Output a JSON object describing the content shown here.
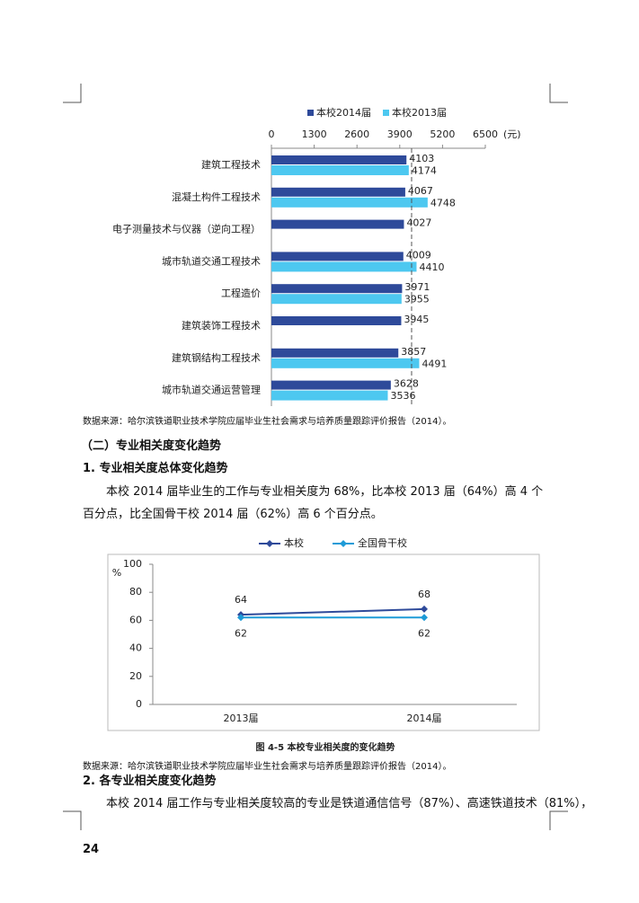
{
  "chart_data": [
    {
      "type": "bar",
      "orientation": "horizontal",
      "categories": [
        "建筑工程技术",
        "混凝土构件工程技术",
        "电子测量技术与仪器（逆向工程）",
        "城市轨道交通工程技术",
        "工程造价",
        "建筑装饰工程技术",
        "建筑钢结构工程技术",
        "城市轨道交通运营管理"
      ],
      "series": [
        {
          "name": "本校2014届",
          "color": "#2e4a9a",
          "values": [
            4103,
            4067,
            4027,
            4009,
            3971,
            3945,
            3857,
            3628
          ]
        },
        {
          "name": "本校2013届",
          "color": "#4dc8f0",
          "values": [
            4174,
            4748,
            null,
            4410,
            3955,
            null,
            4491,
            3536
          ]
        }
      ],
      "xlim": [
        0,
        6500
      ],
      "xticks": [
        0,
        1300,
        2600,
        3900,
        5200,
        6500
      ],
      "xlabel": "(元)",
      "reference_line": 4260,
      "legend": "top"
    },
    {
      "type": "line",
      "categories": [
        "2013届",
        "2014届"
      ],
      "series": [
        {
          "name": "本校",
          "color": "#2e4a9a",
          "values": [
            64,
            68
          ]
        },
        {
          "name": "全国骨干校",
          "color": "#1e9bd7",
          "values": [
            62,
            62
          ]
        }
      ],
      "ylim": [
        0,
        100
      ],
      "yticks": [
        0,
        20,
        40,
        60,
        80,
        100
      ],
      "ylabel": "%",
      "legend": "top",
      "title": "图 4-5  本校专业相关度的变化趋势"
    }
  ],
  "document": {
    "source_1": "数据来源：哈尔滨铁道职业技术学院应届毕业生社会需求与培养质量跟踪评价报告（2014）。",
    "heading_2": "（二）专业相关度变化趋势",
    "heading_3a": "1.   专业相关度总体变化趋势",
    "paragraph_1": "本校 2014 届毕业生的工作与专业相关度为 68%，比本校 2013 届（64%）高 4 个百分点，比全国骨干校 2014 届（62%）高 6 个百分点。",
    "source_2": "数据来源：哈尔滨铁道职业技术学院应届毕业生社会需求与培养质量跟踪评价报告（2014）。",
    "heading_3b": "2.   各专业相关度变化趋势",
    "paragraph_2": "本校 2014 届工作与专业相关度较高的专业是铁道通信信号（87%）、高速铁道技术（81%），",
    "page_number": "24"
  }
}
